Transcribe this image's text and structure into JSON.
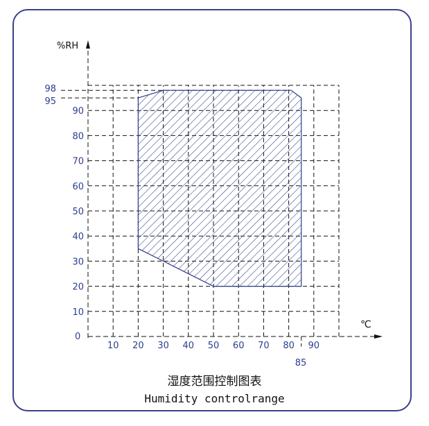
{
  "chart_data": {
    "type": "area",
    "title_cn": "湿度范围控制图表",
    "title_en": "Humidity controlrange",
    "xlabel": "℃",
    "ylabel": "%RH",
    "x_ticks": [
      "10",
      "20",
      "30",
      "40",
      "50",
      "60",
      "70",
      "80",
      "90"
    ],
    "x_tick_extra": "85",
    "y_ticks": [
      "10",
      "20",
      "30",
      "40",
      "50",
      "60",
      "70",
      "80",
      "90"
    ],
    "y_tick_extra": [
      "98",
      "95"
    ],
    "origin_label": "0",
    "xlim": [
      0,
      100
    ],
    "ylim": [
      0,
      100
    ],
    "grid": true,
    "region": [
      {
        "x": 20,
        "y": 35
      },
      {
        "x": 30,
        "y": 30
      },
      {
        "x": 50,
        "y": 20
      },
      {
        "x": 85,
        "y": 20
      },
      {
        "x": 85,
        "y": 95
      },
      {
        "x": 81,
        "y": 98
      },
      {
        "x": 30,
        "y": 98
      },
      {
        "x": 20,
        "y": 95
      }
    ]
  }
}
